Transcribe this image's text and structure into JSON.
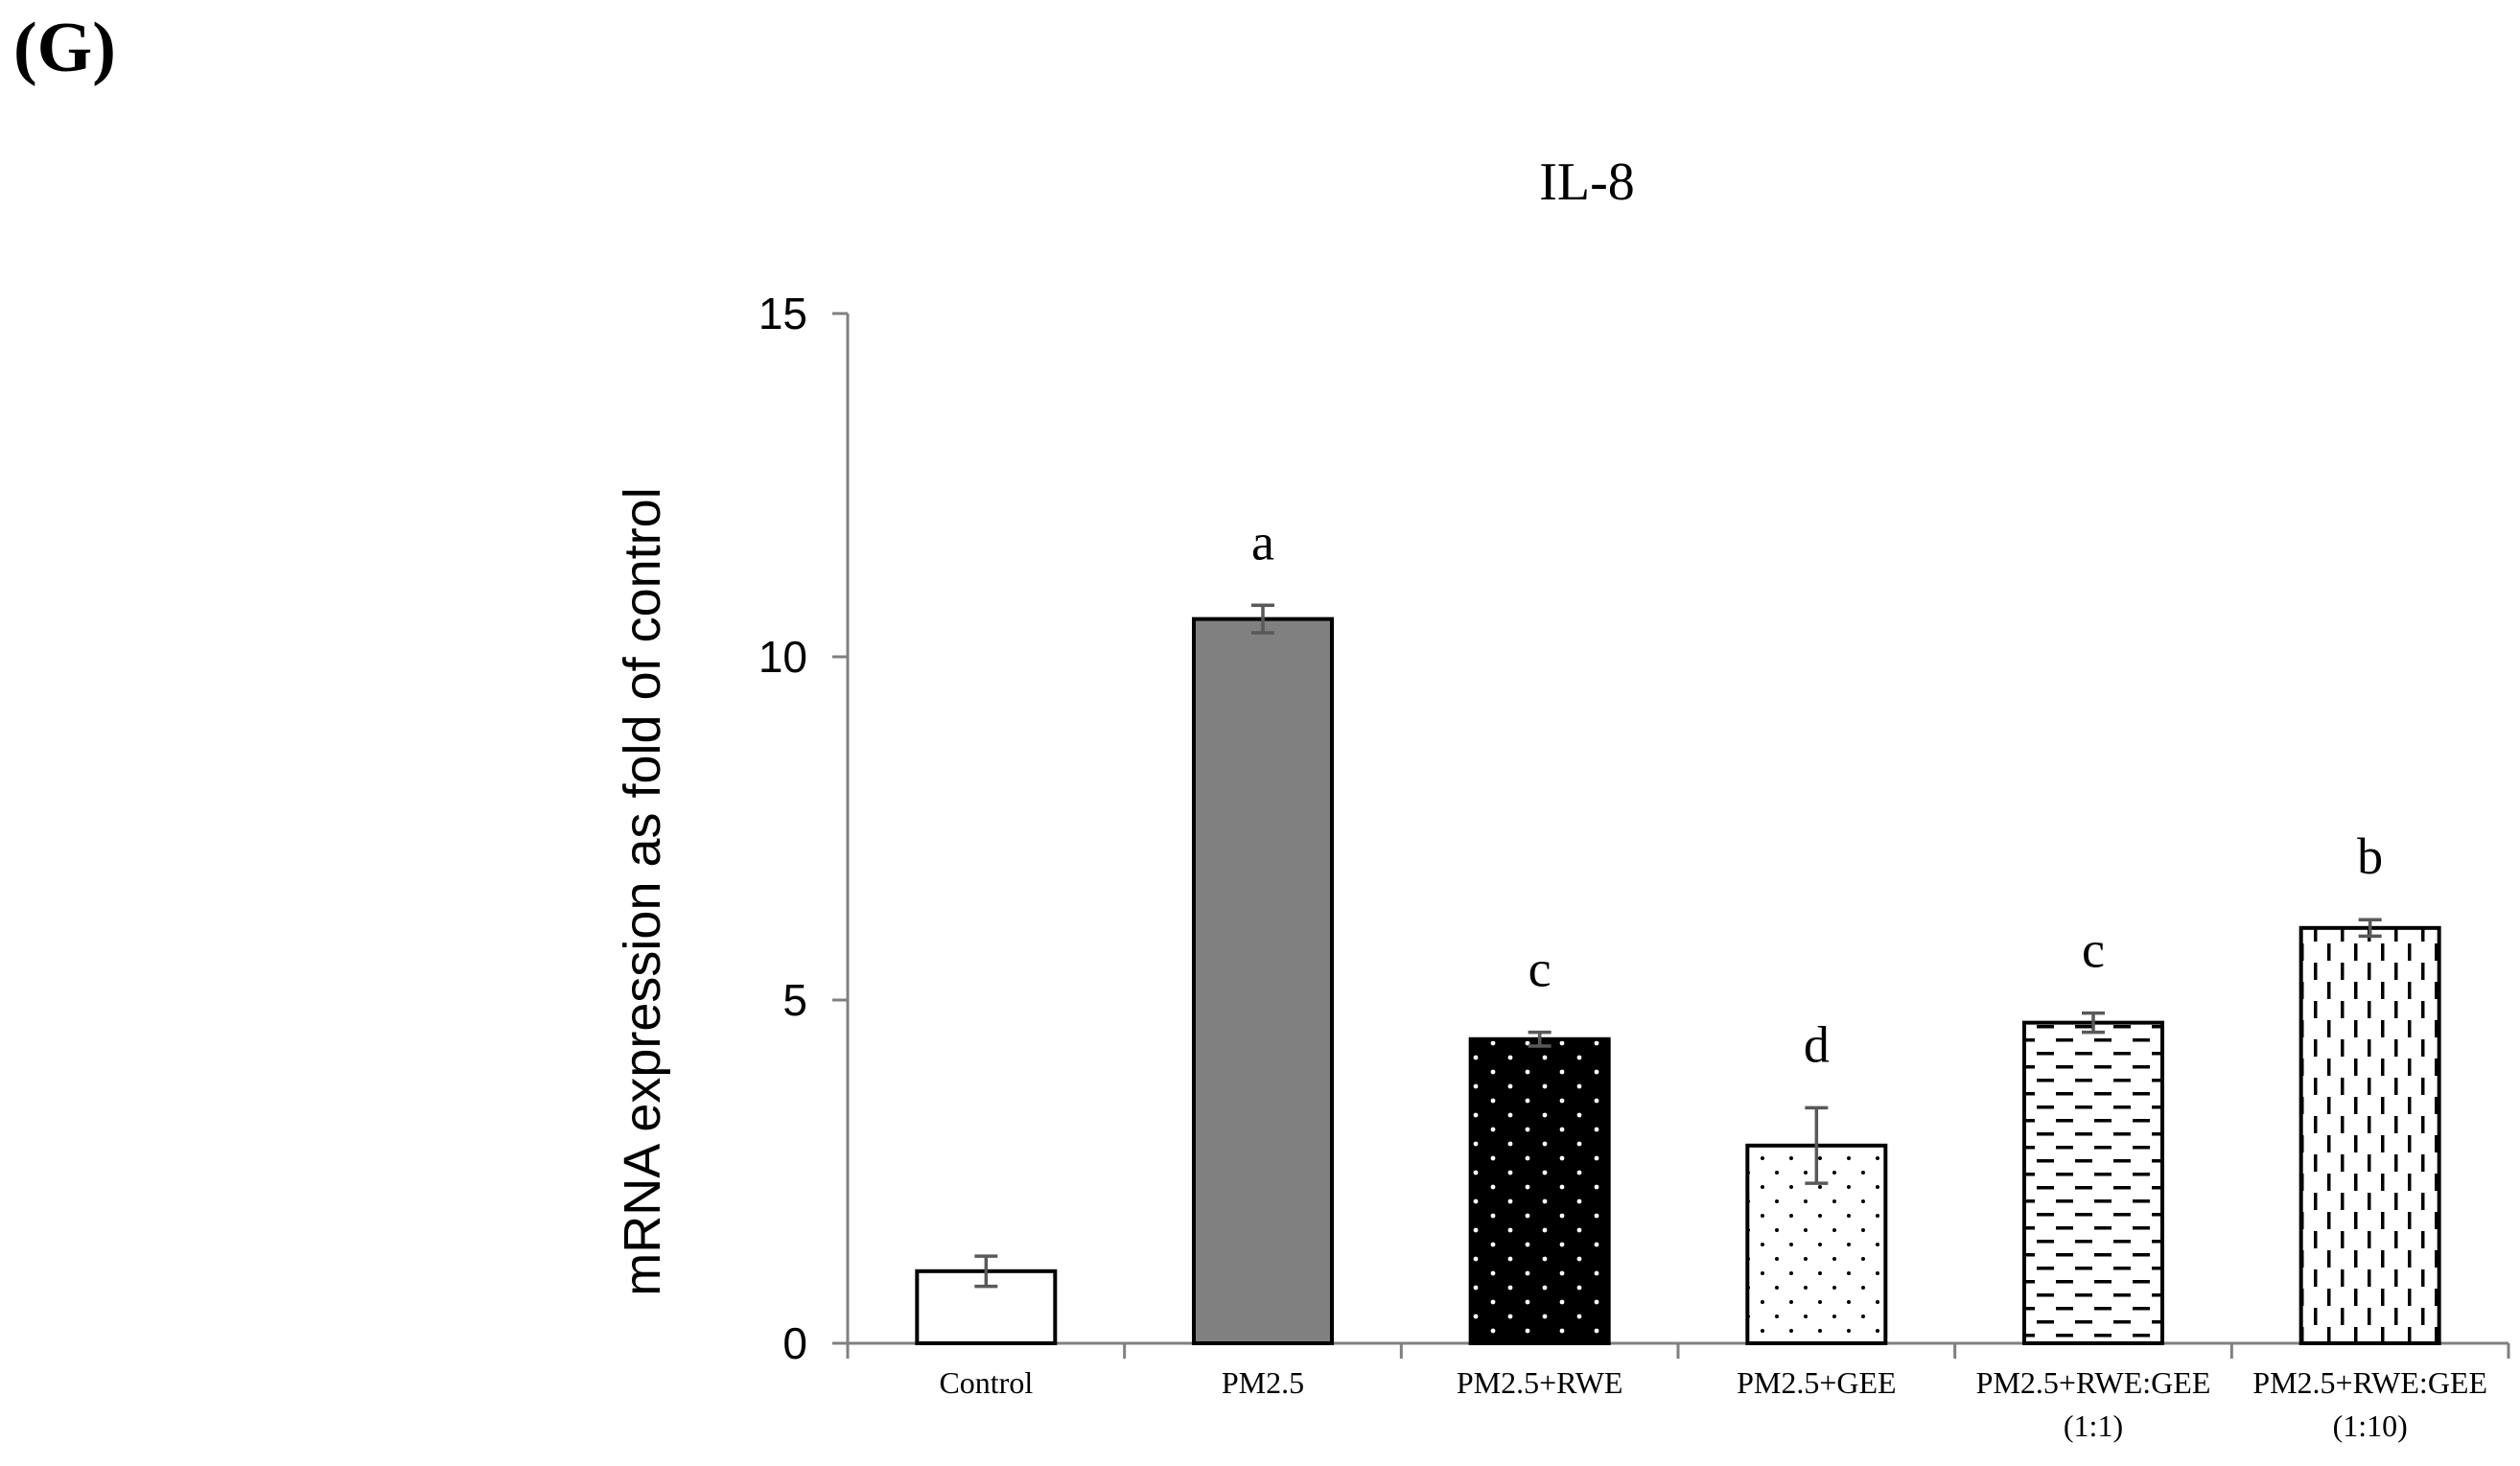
{
  "panel_label": "(G)",
  "chart_data": {
    "type": "bar",
    "title": "IL-8",
    "xlabel": "",
    "ylabel": "mRNA expression as fold of control",
    "ylim": [
      0,
      15
    ],
    "yticks": [
      0,
      5,
      10,
      15
    ],
    "grid": false,
    "legend": "none",
    "categories": [
      [
        "Control"
      ],
      [
        "PM2.5"
      ],
      [
        "PM2.5+RWE"
      ],
      [
        "PM2.5+GEE"
      ],
      [
        "PM2.5+RWE:GEE",
        "(1:1)"
      ],
      [
        "PM2.5+RWE:GEE",
        "(1:10)"
      ]
    ],
    "values": [
      1.05,
      10.55,
      4.43,
      2.88,
      4.67,
      6.05
    ],
    "errors": [
      0.22,
      0.2,
      0.1,
      0.55,
      0.14,
      0.12
    ],
    "significance": [
      "",
      "a",
      "c",
      "d",
      "c",
      "b"
    ],
    "fills": [
      "white",
      "gray",
      "black-dots",
      "white-dots",
      "horizontal-dashes",
      "vertical-dashes"
    ],
    "colors": {
      "bar_outline": "#000000",
      "solid_gray": "#808080",
      "error_bar": "#595959",
      "axis": "#808080"
    }
  }
}
